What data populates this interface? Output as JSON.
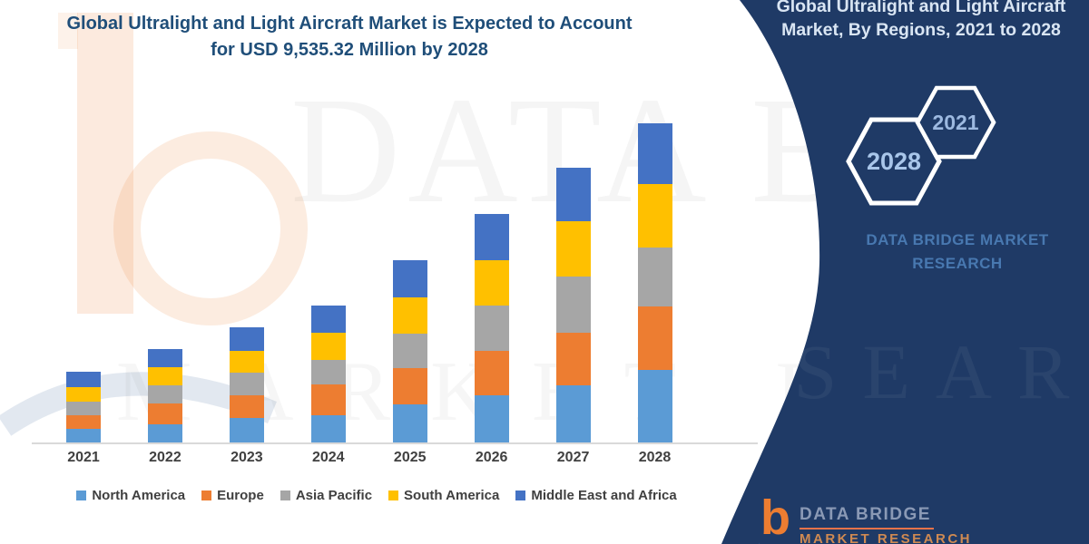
{
  "header": {
    "title": "Global Ultralight and Light Aircraft Market is Expected to Account for USD 9,535.32 Million by 2028"
  },
  "side_panel": {
    "title": "Global Ultralight and Light Aircraft Market, By Regions, 2021 to 2028",
    "hexagon_year_large": "2028",
    "hexagon_year_small": "2021",
    "brand_name": "DATA BRIDGE MARKET RESEARCH",
    "colors": {
      "background": "#1f3a66",
      "title_text": "#d9e5f3",
      "brand_text": "#4878b0",
      "hexagon_stroke": "#ffffff",
      "hexagon_text": "#a9c6ea"
    }
  },
  "footer_logo": {
    "brand": "DATA BRIDGE",
    "subtitle": "MARKET RESEARCH"
  },
  "watermarks": {
    "row1": "DATA BRIDGE",
    "row2": "MARKET RESEARCH",
    "panel_fragment": "ESEARCH"
  },
  "chart_data": {
    "type": "bar",
    "stacked": true,
    "title": "Global Ultralight and Light Aircraft Market is Expected to Account for USD 9,535.32 Million by 2028",
    "unit": "USD Million",
    "categories": [
      "2021",
      "2022",
      "2023",
      "2024",
      "2025",
      "2026",
      "2027",
      "2028"
    ],
    "series": [
      {
        "name": "North America",
        "color": "#5B9BD5",
        "values": [
          420,
          545,
          730,
          815,
          1140,
          1410,
          1705,
          2160
        ]
      },
      {
        "name": "Europe",
        "color": "#ED7D31",
        "values": [
          400,
          620,
          675,
          920,
          1080,
          1330,
          1575,
          1895
        ]
      },
      {
        "name": "Asia Pacific",
        "color": "#A6A6A6",
        "values": [
          405,
          540,
          675,
          730,
          1030,
          1355,
          1680,
          1760
        ]
      },
      {
        "name": "South America",
        "color": "#FFC000",
        "values": [
          440,
          540,
          650,
          815,
          1085,
          1355,
          1650,
          1915
        ]
      },
      {
        "name": "Middle East and Africa",
        "color": "#4472C4",
        "values": [
          440,
          545,
          705,
          810,
          1110,
          1375,
          1600,
          1805.32
        ]
      }
    ],
    "stack_totals": [
      2105,
      2790,
      3435,
      4090,
      5445,
      6825,
      8210,
      9535.32
    ],
    "xlabel": "",
    "ylabel": "",
    "yaxis_visible": false,
    "gridlines": false,
    "legend_position": "bottom"
  }
}
